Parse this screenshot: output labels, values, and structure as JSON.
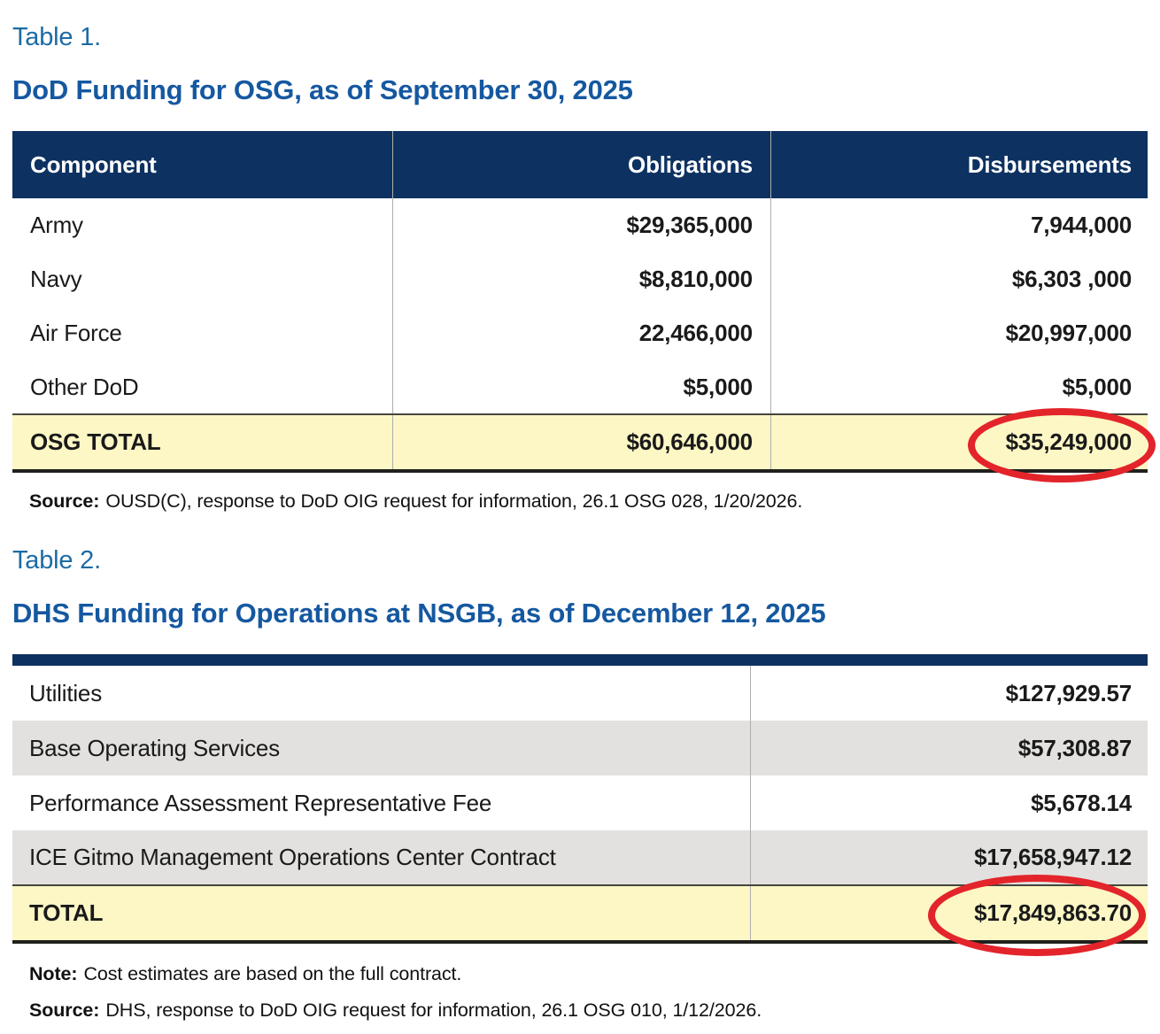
{
  "colors": {
    "label_blue": "#1c6ba5",
    "title_blue": "#1558a0",
    "header_navy": "#0d3161",
    "highlight_yellow": "#fcf7c5",
    "row_gray": "#e2e1df",
    "circle_red": "#e3242b"
  },
  "table1": {
    "label": "Table 1.",
    "title": "DoD Funding for OSG, as of September 30, 2025",
    "columns": [
      "Component",
      "Obligations",
      "Disbursements"
    ],
    "rows": [
      {
        "component": "Army",
        "obligations": "$29,365,000",
        "disbursements": "7,944,000"
      },
      {
        "component": "Navy",
        "obligations": "$8,810,000",
        "disbursements": "$6,303 ,000"
      },
      {
        "component": "Air Force",
        "obligations": "22,466,000",
        "disbursements": "$20,997,000"
      },
      {
        "component": "Other DoD",
        "obligations": "$5,000",
        "disbursements": "$5,000"
      }
    ],
    "total": {
      "component": "OSG TOTAL",
      "obligations": "$60,646,000",
      "disbursements": "$35,249,000"
    },
    "source_label": "Source:",
    "source_text": "OUSD(C), response to DoD OIG request for information, 26.1 OSG 028, 1/20/2026."
  },
  "table2": {
    "label": "Table 2.",
    "title": "DHS Funding for Operations at NSGB, as of December 12, 2025",
    "rows": [
      {
        "item": "Utilities",
        "amount": "$127,929.57"
      },
      {
        "item": "Base Operating Services",
        "amount": "$57,308.87"
      },
      {
        "item": "Performance Assessment Representative Fee",
        "amount": "$5,678.14"
      },
      {
        "item": "ICE Gitmo Management Operations Center Contract",
        "amount": "$17,658,947.12"
      }
    ],
    "total": {
      "item": "TOTAL",
      "amount": "$17,849,863.70"
    },
    "note_label": "Note:",
    "note_text": "Cost estimates are based on the full contract.",
    "source_label": "Source:",
    "source_text": "DHS, response to DoD OIG request for information, 26.1 OSG 010, 1/12/2026."
  }
}
